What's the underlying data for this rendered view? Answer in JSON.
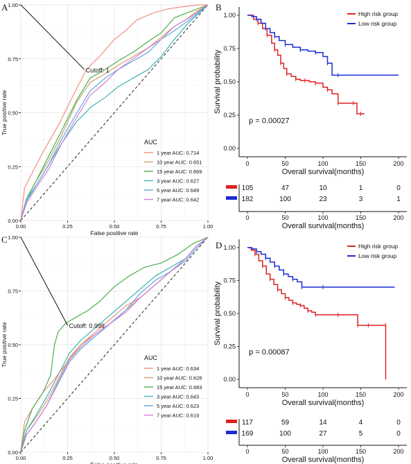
{
  "panels": [
    {
      "type": "roc",
      "letter": "A",
      "xlabel": "False positive rate",
      "ylabel": "True positive rate",
      "x_ticks": [
        "0.00",
        "0.25",
        "0.50",
        "0.75",
        "1.00"
      ],
      "y_ticks": [
        "0.00",
        "0.25",
        "0.50",
        "0.75",
        "1.00"
      ],
      "cutoff_label": "Cutoff: 1",
      "legend_title": "AUC",
      "legend_position": "bottom-right",
      "series": [
        {
          "name": "1 year AUC: 0.714",
          "color": "#f28e80",
          "x": [
            0,
            0.02,
            0.06,
            0.12,
            0.2,
            0.28,
            0.35,
            0.42,
            0.5,
            0.56,
            0.62,
            0.7,
            0.78,
            0.85,
            0.9,
            0.95,
            1
          ],
          "y": [
            0,
            0.15,
            0.22,
            0.32,
            0.44,
            0.58,
            0.7,
            0.76,
            0.84,
            0.88,
            0.93,
            0.96,
            0.98,
            0.99,
            0.995,
            1,
            1
          ]
        },
        {
          "name": "10 year AUC: 0.651",
          "color": "#c8a36a",
          "x": [
            0,
            0.03,
            0.08,
            0.15,
            0.22,
            0.3,
            0.37,
            0.45,
            0.52,
            0.6,
            0.68,
            0.75,
            0.82,
            0.88,
            0.94,
            1
          ],
          "y": [
            0,
            0.1,
            0.18,
            0.28,
            0.4,
            0.55,
            0.64,
            0.68,
            0.72,
            0.76,
            0.8,
            0.85,
            0.9,
            0.93,
            0.97,
            1
          ]
        },
        {
          "name": "15 year AUC: 0.669",
          "color": "#4cae4c",
          "x": [
            0,
            0.03,
            0.08,
            0.15,
            0.22,
            0.3,
            0.37,
            0.45,
            0.52,
            0.6,
            0.68,
            0.75,
            0.82,
            0.88,
            0.94,
            1
          ],
          "y": [
            0,
            0.1,
            0.18,
            0.3,
            0.42,
            0.56,
            0.66,
            0.7,
            0.74,
            0.78,
            0.83,
            0.87,
            0.94,
            0.96,
            0.98,
            1
          ]
        },
        {
          "name": "3 year AUC: 0.627",
          "color": "#3fb3b3",
          "x": [
            0,
            0.03,
            0.08,
            0.15,
            0.22,
            0.3,
            0.38,
            0.45,
            0.52,
            0.6,
            0.68,
            0.75,
            0.82,
            0.9,
            1
          ],
          "y": [
            0,
            0.1,
            0.16,
            0.26,
            0.36,
            0.46,
            0.53,
            0.57,
            0.62,
            0.66,
            0.7,
            0.76,
            0.84,
            0.92,
            1
          ]
        },
        {
          "name": "5 year AUC: 0.649",
          "color": "#5aa7e0",
          "x": [
            0,
            0.03,
            0.08,
            0.15,
            0.22,
            0.3,
            0.37,
            0.45,
            0.52,
            0.6,
            0.68,
            0.75,
            0.82,
            0.9,
            1
          ],
          "y": [
            0,
            0.09,
            0.16,
            0.26,
            0.38,
            0.5,
            0.6,
            0.66,
            0.7,
            0.74,
            0.78,
            0.84,
            0.88,
            0.93,
            1
          ]
        },
        {
          "name": "7 year AUC: 0.642",
          "color": "#d67ad6",
          "x": [
            0,
            0.03,
            0.08,
            0.15,
            0.22,
            0.3,
            0.37,
            0.45,
            0.52,
            0.6,
            0.68,
            0.75,
            0.82,
            0.9,
            1
          ],
          "y": [
            0,
            0.08,
            0.15,
            0.24,
            0.36,
            0.48,
            0.58,
            0.64,
            0.7,
            0.75,
            0.8,
            0.84,
            0.9,
            0.94,
            1
          ]
        }
      ]
    },
    {
      "type": "km",
      "letter": "B",
      "xlabel": "Overall survival(months)",
      "ylabel": "Survival probability",
      "x_ticks": [
        "0",
        "50",
        "100",
        "150",
        "200"
      ],
      "y_ticks": [
        "0.00",
        "0.25",
        "0.50",
        "0.75",
        "1.00"
      ],
      "pvalue": "p = 0.00027",
      "legend_position": "top-right",
      "series": [
        {
          "name": "High risk group",
          "color": "#e02020",
          "x": [
            0,
            8,
            14,
            20,
            26,
            32,
            36,
            40,
            44,
            48,
            52,
            58,
            64,
            70,
            76,
            82,
            90,
            100,
            106,
            112,
            120,
            132,
            140,
            145,
            150,
            155
          ],
          "y": [
            1,
            0.97,
            0.94,
            0.9,
            0.85,
            0.79,
            0.74,
            0.7,
            0.64,
            0.6,
            0.56,
            0.54,
            0.52,
            0.51,
            0.51,
            0.5,
            0.49,
            0.46,
            0.44,
            0.41,
            0.34,
            0.34,
            0.34,
            0.26,
            0.26,
            0.26
          ]
        },
        {
          "name": "Low risk group",
          "color": "#1a2bd6",
          "x": [
            0,
            6,
            12,
            18,
            24,
            30,
            36,
            42,
            50,
            60,
            70,
            80,
            90,
            100,
            106,
            112,
            120,
            150,
            200
          ],
          "y": [
            1,
            0.99,
            0.97,
            0.94,
            0.9,
            0.87,
            0.84,
            0.81,
            0.78,
            0.76,
            0.74,
            0.73,
            0.72,
            0.69,
            0.64,
            0.55,
            0.55,
            0.55,
            0.55
          ]
        }
      ],
      "risk_table": {
        "xlabel": "Overall survival(months)",
        "ticks": [
          "0",
          "50",
          "100",
          "150",
          "200"
        ],
        "rows": [
          {
            "color": "#e02020",
            "values": [
              "105",
              "47",
              "10",
              "1",
              "0"
            ]
          },
          {
            "color": "#1a2bd6",
            "values": [
              "182",
              "100",
              "23",
              "3",
              "1"
            ]
          }
        ]
      }
    },
    {
      "type": "roc",
      "letter": "C",
      "xlabel": "False positive rate",
      "ylabel": "True positive rate",
      "x_ticks": [
        "0.00",
        "0.25",
        "0.50",
        "0.75",
        "1.00"
      ],
      "y_ticks": [
        "0.00",
        "0.25",
        "0.50",
        "0.75",
        "1.00"
      ],
      "cutoff_label": "Cutoff: 0.999",
      "legend_title": "AUC",
      "legend_position": "bottom-right",
      "series": [
        {
          "name": "1 year AUC: 0.634",
          "color": "#f28e80",
          "x": [
            0,
            0.02,
            0.06,
            0.12,
            0.18,
            0.25,
            0.32,
            0.4,
            0.48,
            0.56,
            0.64,
            0.72,
            0.8,
            0.88,
            0.94,
            1
          ],
          "y": [
            0,
            0.14,
            0.2,
            0.28,
            0.34,
            0.42,
            0.5,
            0.56,
            0.62,
            0.68,
            0.72,
            0.78,
            0.84,
            0.9,
            0.96,
            1
          ]
        },
        {
          "name": "10 year AUC: 0.628",
          "color": "#c8a36a",
          "x": [
            0,
            0.03,
            0.08,
            0.14,
            0.2,
            0.26,
            0.32,
            0.4,
            0.48,
            0.56,
            0.64,
            0.72,
            0.8,
            0.88,
            0.94,
            1
          ],
          "y": [
            0,
            0.1,
            0.16,
            0.24,
            0.34,
            0.44,
            0.5,
            0.55,
            0.6,
            0.66,
            0.72,
            0.78,
            0.84,
            0.9,
            0.96,
            1
          ]
        },
        {
          "name": "15 year AUC: 0.683",
          "color": "#4cae4c",
          "x": [
            0,
            0.02,
            0.06,
            0.12,
            0.16,
            0.18,
            0.2,
            0.24,
            0.3,
            0.36,
            0.42,
            0.5,
            0.58,
            0.66,
            0.75,
            0.84,
            0.92,
            1
          ],
          "y": [
            0,
            0.1,
            0.2,
            0.28,
            0.36,
            0.5,
            0.56,
            0.6,
            0.63,
            0.66,
            0.7,
            0.77,
            0.82,
            0.86,
            0.88,
            0.92,
            0.97,
            1
          ]
        },
        {
          "name": "3 year AUC: 0.643",
          "color": "#3fb3b3",
          "x": [
            0,
            0.03,
            0.08,
            0.14,
            0.2,
            0.26,
            0.32,
            0.4,
            0.48,
            0.56,
            0.64,
            0.72,
            0.8,
            0.88,
            0.94,
            1
          ],
          "y": [
            0,
            0.1,
            0.17,
            0.26,
            0.36,
            0.46,
            0.52,
            0.58,
            0.64,
            0.7,
            0.76,
            0.82,
            0.86,
            0.9,
            0.96,
            1
          ]
        },
        {
          "name": "5 year AUC: 0.623",
          "color": "#5aa7e0",
          "x": [
            0,
            0.03,
            0.08,
            0.14,
            0.2,
            0.26,
            0.32,
            0.4,
            0.48,
            0.56,
            0.64,
            0.72,
            0.8,
            0.88,
            0.94,
            1
          ],
          "y": [
            0,
            0.08,
            0.14,
            0.22,
            0.32,
            0.42,
            0.48,
            0.54,
            0.6,
            0.66,
            0.74,
            0.8,
            0.84,
            0.89,
            0.95,
            1
          ]
        },
        {
          "name": "7 year AUC: 0.619",
          "color": "#d67ad6",
          "x": [
            0,
            0.03,
            0.08,
            0.14,
            0.2,
            0.26,
            0.32,
            0.4,
            0.48,
            0.56,
            0.64,
            0.72,
            0.8,
            0.88,
            0.94,
            1
          ],
          "y": [
            0,
            0.08,
            0.14,
            0.22,
            0.33,
            0.43,
            0.49,
            0.55,
            0.6,
            0.65,
            0.72,
            0.78,
            0.84,
            0.9,
            0.96,
            1
          ]
        }
      ]
    },
    {
      "type": "km",
      "letter": "D",
      "xlabel": "Overall survival(months)",
      "ylabel": "Survival probability",
      "x_ticks": [
        "0",
        "50",
        "100",
        "150",
        "200"
      ],
      "y_ticks": [
        "0.00",
        "0.25",
        "0.50",
        "0.75",
        "1.00"
      ],
      "pvalue": "p = 0.00087",
      "legend_position": "top-right",
      "series": [
        {
          "name": "High risk group",
          "color": "#e02020",
          "x": [
            0,
            5,
            10,
            15,
            20,
            25,
            30,
            35,
            40,
            45,
            50,
            55,
            60,
            65,
            70,
            75,
            80,
            85,
            90,
            100,
            120,
            140,
            146,
            150,
            160,
            170,
            183,
            183
          ],
          "y": [
            1,
            0.98,
            0.95,
            0.9,
            0.86,
            0.8,
            0.76,
            0.72,
            0.68,
            0.65,
            0.62,
            0.6,
            0.58,
            0.57,
            0.56,
            0.54,
            0.52,
            0.51,
            0.49,
            0.49,
            0.49,
            0.49,
            0.41,
            0.41,
            0.41,
            0.41,
            0.41,
            0
          ]
        },
        {
          "name": "Low risk group",
          "color": "#1a2bd6",
          "x": [
            0,
            6,
            12,
            18,
            24,
            30,
            36,
            42,
            48,
            54,
            60,
            66,
            72,
            80,
            100,
            150,
            195
          ],
          "y": [
            1,
            0.99,
            0.97,
            0.95,
            0.92,
            0.89,
            0.86,
            0.83,
            0.8,
            0.78,
            0.76,
            0.74,
            0.7,
            0.7,
            0.7,
            0.7,
            0.7
          ]
        }
      ],
      "risk_table": {
        "xlabel": "Overall survival(months)",
        "ticks": [
          "0",
          "50",
          "100",
          "150",
          "200"
        ],
        "rows": [
          {
            "color": "#e02020",
            "values": [
              "117",
              "59",
              "14",
              "4",
              "0"
            ]
          },
          {
            "color": "#1a2bd6",
            "values": [
              "169",
              "100",
              "27",
              "5",
              "0"
            ]
          }
        ]
      }
    }
  ],
  "chart_data": [
    {
      "type": "line",
      "title": "",
      "xlabel": "False positive rate",
      "ylabel": "True positive rate",
      "xlim": [
        0,
        1
      ],
      "ylim": [
        0,
        1
      ],
      "grid": true,
      "legend": "bottom-right"
    },
    {
      "type": "line",
      "title": "",
      "xlabel": "Overall survival(months)",
      "ylabel": "Survival probability",
      "xlim": [
        0,
        200
      ],
      "ylim": [
        0,
        1
      ],
      "grid": false,
      "legend": "top-right"
    },
    {
      "type": "line",
      "title": "",
      "xlabel": "False positive rate",
      "ylabel": "True positive rate",
      "xlim": [
        0,
        1
      ],
      "ylim": [
        0,
        1
      ],
      "grid": true,
      "legend": "bottom-right"
    },
    {
      "type": "line",
      "title": "",
      "xlabel": "Overall survival(months)",
      "ylabel": "Survival probability",
      "xlim": [
        0,
        200
      ],
      "ylim": [
        0,
        1
      ],
      "grid": false,
      "legend": "top-right"
    }
  ]
}
